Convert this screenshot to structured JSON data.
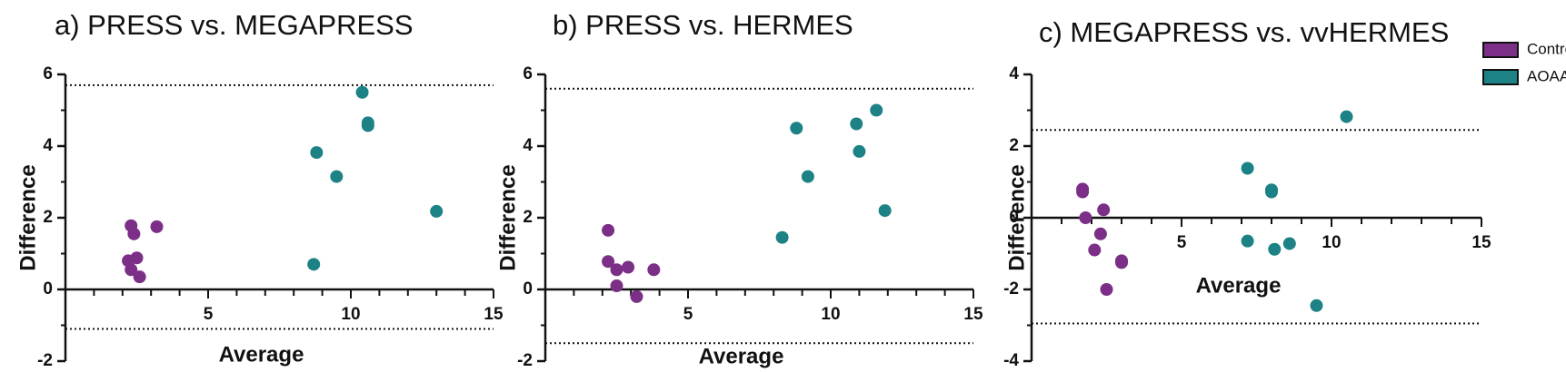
{
  "chart_data": [
    {
      "type": "scatter",
      "title": "a) PRESS vs. MEGAPRESS",
      "xlabel": "Average",
      "ylabel": "Difference",
      "xlim": [
        0,
        15
      ],
      "ylim": [
        -2,
        6
      ],
      "xticks": [
        "5",
        "10",
        "15"
      ],
      "yticks": [
        "-2",
        "0",
        "2",
        "4",
        "6"
      ],
      "limits_of_agreement": [
        5.7,
        -1.1
      ],
      "series": [
        {
          "name": "Control",
          "color": "#7b2f86",
          "points": [
            [
              2.2,
              0.8
            ],
            [
              2.3,
              0.55
            ],
            [
              2.3,
              1.78
            ],
            [
              2.4,
              1.55
            ],
            [
              2.5,
              0.88
            ],
            [
              2.6,
              0.35
            ],
            [
              3.2,
              1.75
            ]
          ]
        },
        {
          "name": "AOAA",
          "color": "#1d8285",
          "points": [
            [
              8.7,
              0.7
            ],
            [
              8.8,
              3.82
            ],
            [
              9.5,
              3.15
            ],
            [
              10.4,
              5.5
            ],
            [
              10.6,
              4.65
            ],
            [
              10.6,
              4.57
            ],
            [
              13.0,
              2.18
            ]
          ]
        }
      ]
    },
    {
      "type": "scatter",
      "title": "b) PRESS vs. HERMES",
      "xlabel": "Average",
      "ylabel": "Difference",
      "xlim": [
        0,
        15
      ],
      "ylim": [
        -2,
        6
      ],
      "xticks": [
        "5",
        "10",
        "15"
      ],
      "yticks": [
        "-2",
        "0",
        "2",
        "4",
        "6"
      ],
      "limits_of_agreement": [
        5.6,
        -1.5
      ],
      "series": [
        {
          "name": "Control",
          "color": "#7b2f86",
          "points": [
            [
              2.2,
              1.65
            ],
            [
              2.2,
              0.78
            ],
            [
              2.5,
              0.55
            ],
            [
              2.5,
              0.1
            ],
            [
              2.9,
              0.62
            ],
            [
              3.2,
              -0.2
            ],
            [
              3.8,
              0.55
            ]
          ]
        },
        {
          "name": "AOAA",
          "color": "#1d8285",
          "points": [
            [
              8.3,
              1.45
            ],
            [
              8.8,
              4.5
            ],
            [
              9.2,
              3.15
            ],
            [
              10.9,
              4.62
            ],
            [
              11.0,
              3.85
            ],
            [
              11.6,
              5.0
            ],
            [
              11.9,
              2.2
            ]
          ]
        }
      ]
    },
    {
      "type": "scatter",
      "title": "c) MEGAPRESS vs. vvHERMES",
      "xlabel": "Average",
      "ylabel": "Difference",
      "xlim": [
        0,
        15
      ],
      "ylim": [
        -4,
        4
      ],
      "xticks": [
        "5",
        "10",
        "15"
      ],
      "yticks": [
        "-4",
        "-2",
        "0",
        "2",
        "4"
      ],
      "limits_of_agreement": [
        2.45,
        -2.95
      ],
      "series": [
        {
          "name": "Control",
          "color": "#7b2f86",
          "points": [
            [
              1.7,
              0.8
            ],
            [
              1.7,
              0.72
            ],
            [
              1.8,
              0.0
            ],
            [
              2.1,
              -0.9
            ],
            [
              2.3,
              -0.45
            ],
            [
              2.4,
              0.22
            ],
            [
              2.5,
              -2.0
            ],
            [
              3.0,
              -1.2
            ],
            [
              3.0,
              -1.25
            ]
          ]
        },
        {
          "name": "AOAA",
          "color": "#1d8285",
          "points": [
            [
              7.2,
              1.38
            ],
            [
              7.2,
              -0.65
            ],
            [
              8.0,
              0.78
            ],
            [
              8.0,
              0.72
            ],
            [
              8.1,
              -0.88
            ],
            [
              8.6,
              -0.72
            ],
            [
              9.5,
              -2.45
            ],
            [
              10.5,
              2.82
            ]
          ]
        }
      ]
    }
  ],
  "legend": {
    "position": "top-right",
    "items": [
      {
        "label": "Control",
        "color": "#7b2f86"
      },
      {
        "label": "AOAA",
        "color": "#1d8285"
      }
    ]
  }
}
